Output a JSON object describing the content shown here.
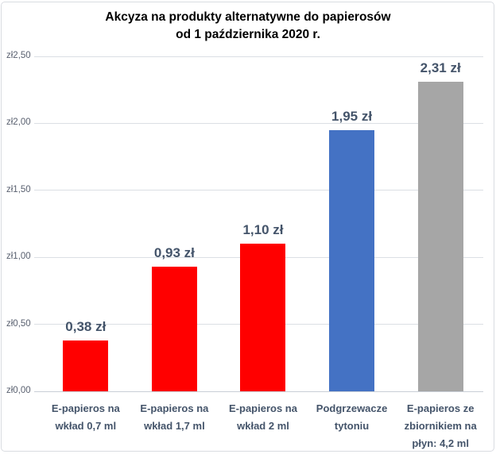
{
  "chart_data": {
    "type": "bar",
    "title": "Akcyza na produkty alternatywne do papierosów od 1 października 2020 r.",
    "title_lines": [
      "Akcyza na produkty alternatywne do papierosów",
      "od 1 października 2020 r."
    ],
    "categories": [
      "E-papieros na wkład 0,7 ml",
      "E-papieros na wkład 1,7 ml",
      "E-papieros na wkład 2 ml",
      "Podgrzewacze tytoniu",
      "E-papieros ze zbiornikiem na płyn: 4,2 ml"
    ],
    "values": [
      0.38,
      0.93,
      1.1,
      1.95,
      2.31
    ],
    "value_labels": [
      "0,38 zł",
      "0,93 zł",
      "1,10 zł",
      "1,95 zł",
      "2,31 zł"
    ],
    "bar_colors": [
      "#FF0000",
      "#FF0000",
      "#FF0000",
      "#4472C4",
      "#A6A6A6"
    ],
    "y_ticks": [
      {
        "label": "zł0,00",
        "value": 0
      },
      {
        "label": "zł0,50",
        "value": 0.5
      },
      {
        "label": "zł1,00",
        "value": 1.0
      },
      {
        "label": "zł1,50",
        "value": 1.5
      },
      {
        "label": "zł2,00",
        "value": 2.0
      },
      {
        "label": "zł2,50",
        "value": 2.5
      }
    ],
    "ylim": [
      0,
      2.5
    ],
    "xlabel": "",
    "ylabel": "",
    "grid": true,
    "legend": false,
    "colors": {
      "data_label_text": "#44546A",
      "axis_text": "#5A6170",
      "gridline": "#DBDFE4",
      "title_text": "#000000",
      "background": "#FFFFFF"
    }
  }
}
